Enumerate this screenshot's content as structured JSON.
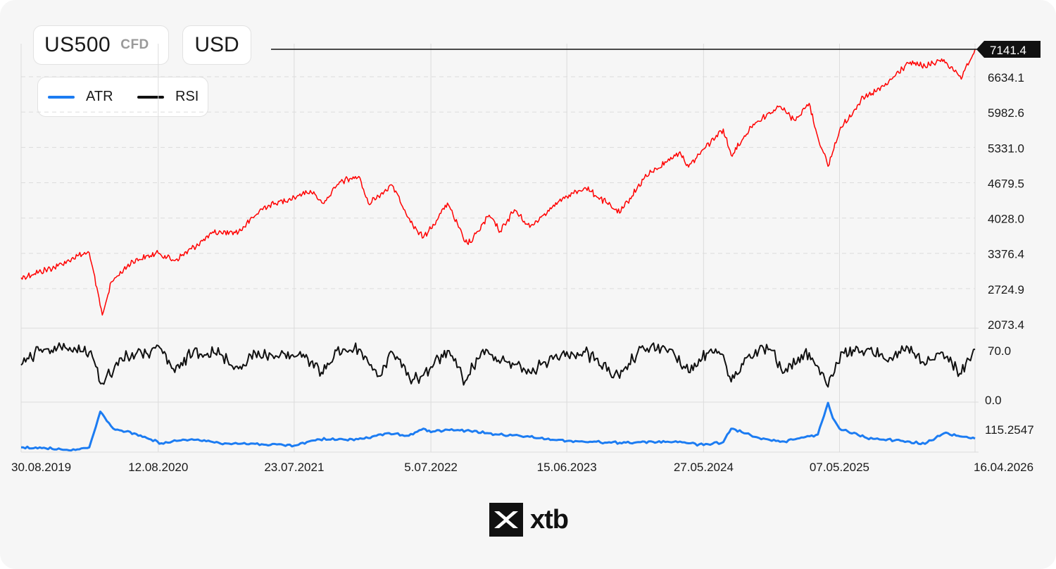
{
  "header": {
    "symbol": "US500",
    "symbol_type": "CFD",
    "currency": "USD"
  },
  "legend": [
    {
      "label": "ATR",
      "color": "#1c7cf2"
    },
    {
      "label": "RSI",
      "color": "#111111"
    }
  ],
  "logo": {
    "text": "xtb",
    "icon": "xtb-x-icon"
  },
  "colors": {
    "price": "#ff0000",
    "rsi": "#111111",
    "atr": "#1c7cf2",
    "grid": "#dcdcdc"
  },
  "chart_data": {
    "type": "line",
    "x_tick_labels": [
      "30.08.2019",
      "12.08.2020",
      "23.07.2021",
      "5.07.2022",
      "15.06.2023",
      "27.05.2024",
      "07.05.2025",
      "16.04.2026"
    ],
    "price": {
      "name": "US500",
      "y_tick_labels": [
        "6634.1",
        "5982.6",
        "5331.0",
        "4679.5",
        "4028.0",
        "3376.4",
        "2724.9",
        "2073.4"
      ],
      "ylim": [
        2073.4,
        7141.4
      ],
      "last_value": 7141.4,
      "last_value_label": "7141.4",
      "x": [
        "2019-08-30",
        "2019-12-01",
        "2020-01-20",
        "2020-02-19",
        "2020-03-23",
        "2020-04-15",
        "2020-06-08",
        "2020-08-12",
        "2020-09-23",
        "2020-12-31",
        "2021-03-04",
        "2021-05-07",
        "2021-07-23",
        "2021-09-02",
        "2021-10-04",
        "2021-11-18",
        "2022-01-03",
        "2022-01-27",
        "2022-03-29",
        "2022-05-20",
        "2022-06-16",
        "2022-07-05",
        "2022-08-16",
        "2022-09-30",
        "2022-10-13",
        "2022-11-30",
        "2022-12-28",
        "2023-02-02",
        "2023-03-13",
        "2023-04-28",
        "2023-06-15",
        "2023-07-31",
        "2023-09-25",
        "2023-10-27",
        "2023-12-29",
        "2024-03-28",
        "2024-04-19",
        "2024-05-27",
        "2024-07-16",
        "2024-08-05",
        "2024-09-30",
        "2024-12-06",
        "2025-01-13",
        "2025-02-19",
        "2025-03-13",
        "2025-04-08",
        "2025-05-07",
        "2025-06-30",
        "2025-08-29",
        "2025-10-28",
        "2025-12-10",
        "2026-01-27",
        "2026-02-20",
        "2026-03-12",
        "2026-04-16"
      ],
      "y": [
        2926,
        3140,
        3330,
        3386,
        2237,
        2850,
        3232,
        3380,
        3240,
        3756,
        3770,
        4230,
        4410,
        4536,
        4300,
        4700,
        4796,
        4300,
        4630,
        3900,
        3666,
        3831,
        4305,
        3585,
        3577,
        4080,
        3783,
        4180,
        3855,
        4170,
        4425,
        4590,
        4300,
        4117,
        4770,
        5250,
        4967,
        5300,
        5670,
        5186,
        5760,
        6090,
        5830,
        6144,
        5520,
        4982,
        5640,
        6200,
        6460,
        6890,
        6830,
        6950,
        6750,
        6590,
        7141.4
      ]
    },
    "rsi": {
      "name": "RSI",
      "y_tick_labels": [
        "70.0",
        "0.0"
      ],
      "ylim": [
        0,
        100
      ],
      "x": [
        "2019-08-30",
        "2019-10-15",
        "2019-12-20",
        "2020-02-19",
        "2020-03-23",
        "2020-05-10",
        "2020-07-01",
        "2020-08-20",
        "2020-09-23",
        "2020-11-10",
        "2021-01-15",
        "2021-03-04",
        "2021-04-15",
        "2021-06-10",
        "2021-08-15",
        "2021-10-04",
        "2021-11-08",
        "2022-01-03",
        "2022-02-23",
        "2022-03-29",
        "2022-05-20",
        "2022-06-16",
        "2022-08-16",
        "2022-09-30",
        "2022-11-10",
        "2023-01-20",
        "2023-03-13",
        "2023-05-15",
        "2023-07-31",
        "2023-10-27",
        "2023-12-20",
        "2024-03-01",
        "2024-04-19",
        "2024-06-15",
        "2024-07-16",
        "2024-08-05",
        "2024-09-20",
        "2024-11-11",
        "2024-12-18",
        "2025-02-19",
        "2025-04-08",
        "2025-05-15",
        "2025-07-15",
        "2025-09-15",
        "2025-10-28",
        "2025-12-10",
        "2026-01-20",
        "2026-03-12",
        "2026-04-16"
      ],
      "y": [
        50,
        70,
        74,
        68,
        25,
        60,
        66,
        72,
        40,
        70,
        65,
        45,
        67,
        62,
        65,
        38,
        70,
        72,
        35,
        68,
        30,
        36,
        70,
        28,
        68,
        55,
        40,
        62,
        68,
        32,
        74,
        72,
        40,
        72,
        64,
        27,
        65,
        72,
        40,
        67,
        20,
        68,
        72,
        60,
        74,
        50,
        68,
        38,
        72
      ]
    },
    "atr": {
      "name": "ATR",
      "y_tick_labels": [
        "115.2547"
      ],
      "ylim": [
        0,
        420
      ],
      "x": [
        "2019-08-30",
        "2019-11-01",
        "2020-01-15",
        "2020-02-19",
        "2020-03-18",
        "2020-04-20",
        "2020-06-12",
        "2020-08-20",
        "2020-11-05",
        "2021-01-28",
        "2021-04-15",
        "2021-07-23",
        "2021-09-20",
        "2021-12-01",
        "2022-01-27",
        "2022-03-15",
        "2022-05-10",
        "2022-06-16",
        "2022-07-05",
        "2022-08-16",
        "2022-10-13",
        "2022-12-20",
        "2023-03-13",
        "2023-06-15",
        "2023-10-27",
        "2024-03-28",
        "2024-04-19",
        "2024-05-27",
        "2024-07-16",
        "2024-08-05",
        "2024-10-15",
        "2024-12-18",
        "2025-01-20",
        "2025-03-13",
        "2025-04-08",
        "2025-04-20",
        "2025-05-07",
        "2025-07-15",
        "2025-10-15",
        "2025-12-10",
        "2026-01-27",
        "2026-03-20",
        "2026-04-16"
      ],
      "y": [
        40,
        32,
        18,
        40,
        345,
        200,
        160,
        75,
        110,
        75,
        70,
        55,
        110,
        105,
        120,
        160,
        140,
        200,
        170,
        190,
        180,
        150,
        130,
        95,
        80,
        90,
        75,
        60,
        85,
        200,
        120,
        90,
        115,
        150,
        420,
        290,
        200,
        120,
        95,
        70,
        160,
        130,
        115.25
      ]
    }
  }
}
